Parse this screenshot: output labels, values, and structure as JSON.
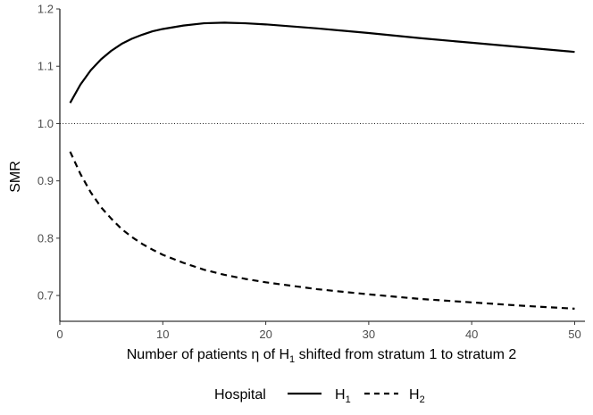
{
  "chart_data": {
    "type": "line",
    "xlabel": {
      "before": "Number of patients η of H",
      "sub": "1",
      "after": " shifted from stratum 1 to stratum 2"
    },
    "ylabel": "SMR",
    "xlim": [
      0,
      51
    ],
    "ylim": [
      0.655,
      1.2
    ],
    "xticks": [
      0,
      10,
      20,
      30,
      40,
      50
    ],
    "yticks": [
      0.7,
      0.8,
      0.9,
      1.0,
      1.1,
      1.2
    ],
    "ytick_labels": [
      "0.7",
      "0.8",
      "0.9",
      "1.0",
      "1.1",
      "1.2"
    ],
    "reference_line": {
      "y": 1.0,
      "style": "dotted"
    },
    "grid": false,
    "legend": {
      "position": "bottom",
      "title": "Hospital",
      "entries": [
        {
          "main": "H",
          "sub": "1",
          "style": "solid"
        },
        {
          "main": "H",
          "sub": "2",
          "style": "dashed"
        }
      ]
    },
    "series": [
      {
        "style": "solid",
        "x": [
          1,
          2,
          3,
          4,
          5,
          6,
          7,
          8,
          9,
          10,
          12,
          14,
          16,
          18,
          20,
          25,
          30,
          35,
          40,
          45,
          50
        ],
        "y": [
          1.036,
          1.068,
          1.093,
          1.112,
          1.127,
          1.139,
          1.148,
          1.155,
          1.161,
          1.165,
          1.171,
          1.175,
          1.176,
          1.175,
          1.173,
          1.166,
          1.158,
          1.149,
          1.141,
          1.133,
          1.125
        ]
      },
      {
        "style": "dashed",
        "x": [
          1,
          2,
          3,
          4,
          5,
          6,
          7,
          8,
          9,
          10,
          12,
          14,
          16,
          18,
          20,
          25,
          30,
          35,
          40,
          45,
          50
        ],
        "y": [
          0.951,
          0.912,
          0.88,
          0.854,
          0.834,
          0.816,
          0.802,
          0.79,
          0.78,
          0.771,
          0.757,
          0.745,
          0.736,
          0.729,
          0.723,
          0.711,
          0.702,
          0.694,
          0.688,
          0.682,
          0.677
        ]
      }
    ]
  }
}
